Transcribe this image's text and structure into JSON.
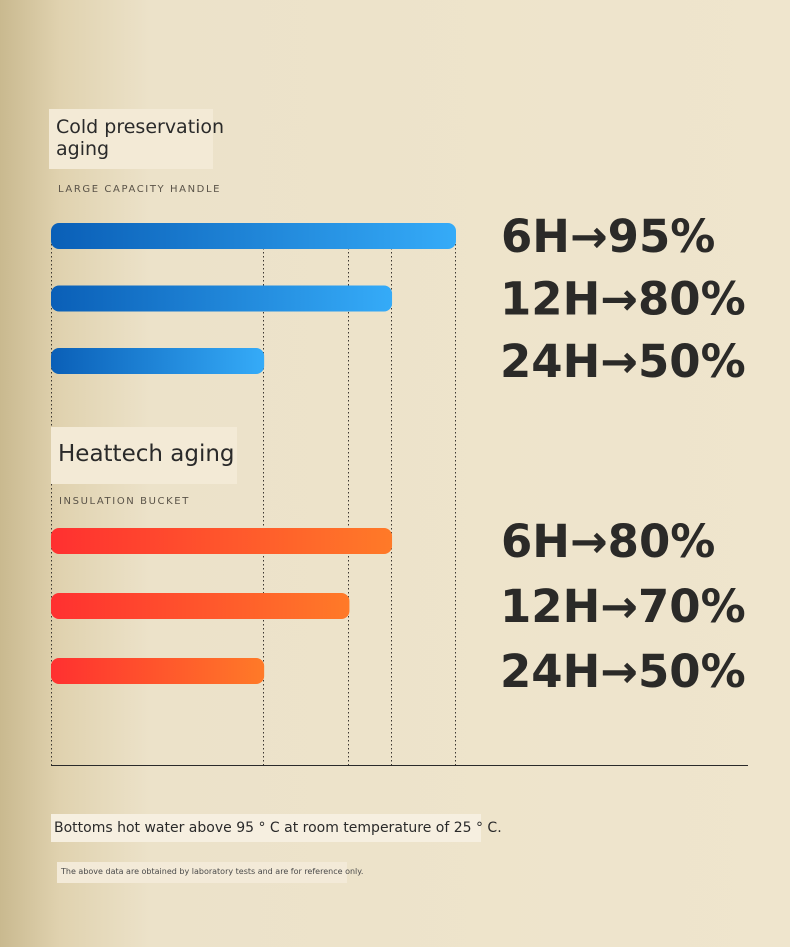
{
  "sections": {
    "cold": {
      "title": "Cold preservation aging",
      "subtitle": "LARGE CAPACITY HANDLE"
    },
    "heat": {
      "title": "Heattech aging",
      "subtitle": "INSULATION BUCKET"
    }
  },
  "note": "Bottoms hot water above 95 ° C at room temperature of 25 ° C.",
  "disclaimer": "The above data are obtained by laboratory tests and are for reference only.",
  "chart_data": [
    {
      "type": "bar",
      "orientation": "horizontal",
      "title": "Cold preservation aging",
      "subtitle": "LARGE CAPACITY HANDLE",
      "categories": [
        "6H",
        "12H",
        "24H"
      ],
      "values": [
        95,
        80,
        50
      ],
      "labels": [
        "6H→95%",
        "12H→80%",
        "24H→50%"
      ],
      "colors": [
        "#0a5fb7",
        "#35abf8"
      ],
      "grid": "dotted guide lines"
    },
    {
      "type": "bar",
      "orientation": "horizontal",
      "title": "Heattech aging",
      "subtitle": "INSULATION BUCKET",
      "categories": [
        "6H",
        "12H",
        "24H"
      ],
      "values": [
        80,
        70,
        50
      ],
      "labels": [
        "6H→80%",
        "12H→70%",
        "24H→50%"
      ],
      "colors": [
        "#ff3030",
        "#ff7a28"
      ],
      "grid": "dotted guide lines"
    }
  ]
}
